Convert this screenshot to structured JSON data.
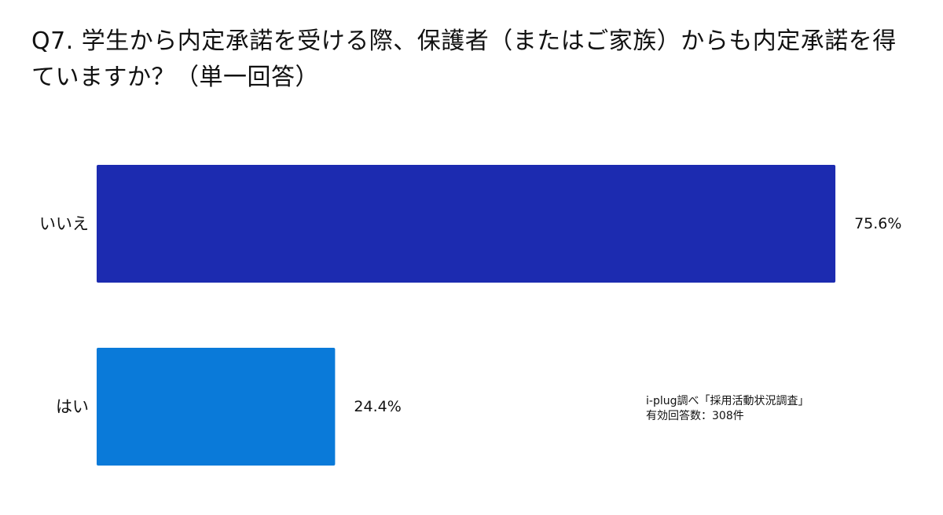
{
  "chart_data": {
    "type": "bar",
    "orientation": "horizontal",
    "title": "Q7. 学生から内定承諾を受ける際、保護者（またはご家族）からも内定承諾を得ていますか？（単一回答）",
    "categories": [
      "いいえ",
      "はい"
    ],
    "values": [
      75.6,
      24.4
    ],
    "value_labels": [
      "75.6%",
      "24.4%"
    ],
    "bar_colors": [
      "#1c2bb0",
      "#0a7ad9"
    ],
    "xlim": [
      0,
      80.5
    ],
    "grid": false,
    "legend": "none"
  },
  "source": {
    "line1": "i-plug調べ「採用活動状況調査」",
    "line2": "有効回答数：308件"
  }
}
